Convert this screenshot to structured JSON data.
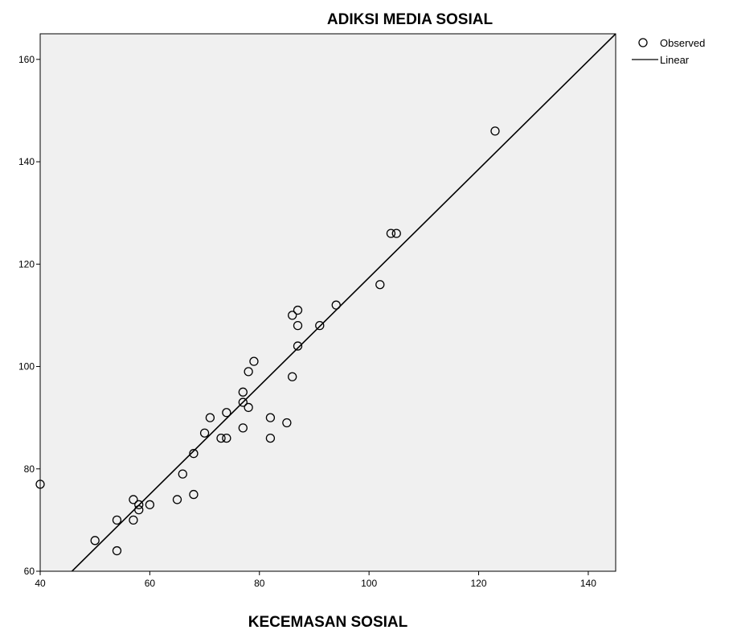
{
  "chart_data": {
    "type": "scatter",
    "title": "ADIKSI MEDIA SOSIAL",
    "xlabel": "KECEMASAN SOSIAL",
    "ylabel": "",
    "xlim": [
      40,
      145
    ],
    "ylim": [
      60,
      165
    ],
    "x_ticks": [
      "40",
      "60",
      "80",
      "100",
      "120",
      "140"
    ],
    "y_ticks": [
      "60",
      "80",
      "100",
      "120",
      "140",
      "160"
    ],
    "legend": {
      "position": "top-right",
      "entries": [
        "Observed",
        "Linear"
      ]
    },
    "grid": false,
    "colors": {
      "plot_background": "#f0f0f0",
      "marker": "#000000",
      "line": "#000000"
    },
    "series": [
      {
        "name": "Observed",
        "type": "scatter",
        "points": [
          [
            40,
            77
          ],
          [
            50,
            66
          ],
          [
            54,
            64
          ],
          [
            54,
            70
          ],
          [
            57,
            70
          ],
          [
            57,
            74
          ],
          [
            58,
            72
          ],
          [
            58,
            73
          ],
          [
            60,
            73
          ],
          [
            65,
            74
          ],
          [
            66,
            79
          ],
          [
            68,
            75
          ],
          [
            68,
            83
          ],
          [
            70,
            87
          ],
          [
            71,
            90
          ],
          [
            73,
            86
          ],
          [
            74,
            86
          ],
          [
            74,
            91
          ],
          [
            77,
            88
          ],
          [
            77,
            93
          ],
          [
            77,
            95
          ],
          [
            78,
            92
          ],
          [
            78,
            99
          ],
          [
            79,
            101
          ],
          [
            82,
            86
          ],
          [
            82,
            90
          ],
          [
            85,
            89
          ],
          [
            86,
            98
          ],
          [
            86,
            110
          ],
          [
            87,
            104
          ],
          [
            87,
            108
          ],
          [
            87,
            111
          ],
          [
            91,
            108
          ],
          [
            94,
            112
          ],
          [
            102,
            116
          ],
          [
            104,
            126
          ],
          [
            105,
            126
          ],
          [
            123,
            146
          ]
        ]
      },
      {
        "name": "Linear",
        "type": "line",
        "points": [
          [
            45.8,
            60
          ],
          [
            145,
            165
          ]
        ]
      }
    ]
  }
}
